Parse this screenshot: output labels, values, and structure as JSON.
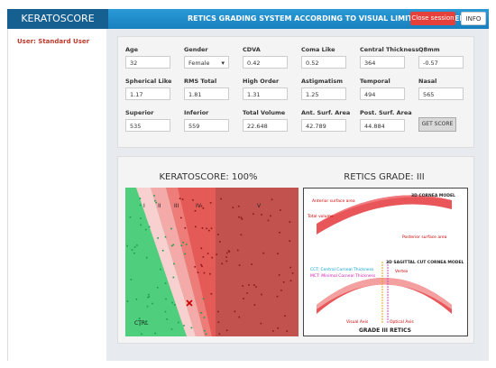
{
  "header": {
    "brand": "KERATOSCORE",
    "title": "RETICS GRADING SYSTEM ACCORDING TO VISUAL LIMITATION LEVEL",
    "close_button": "Close session",
    "info_button": "INFO"
  },
  "sidebar": {
    "user": "User: Standard User"
  },
  "form": {
    "fields": [
      {
        "label": "Age",
        "value": "32"
      },
      {
        "label": "Gender",
        "value": "Female"
      },
      {
        "label": "CDVA",
        "value": "0.42"
      },
      {
        "label": "Coma Like",
        "value": "0.52"
      },
      {
        "label": "Central Thickness",
        "value": "364"
      },
      {
        "label": "Q8mm",
        "value": "-0.57"
      },
      {
        "label": "Spherical Like",
        "value": "1.17"
      },
      {
        "label": "RMS Total",
        "value": "1.81"
      },
      {
        "label": "High Order",
        "value": "1.31"
      },
      {
        "label": "Astigmatism",
        "value": "1.25"
      },
      {
        "label": "Temporal",
        "value": "494"
      },
      {
        "label": "Nasal",
        "value": "565"
      },
      {
        "label": "Superior",
        "value": "535"
      },
      {
        "label": "Inferior",
        "value": "559"
      },
      {
        "label": "Total Volume",
        "value": "22.648"
      },
      {
        "label": "Ant. Surf. Area",
        "value": "42.789"
      },
      {
        "label": "Post. Surf. Area",
        "value": "44.884"
      }
    ],
    "button": "GET SCORE"
  },
  "results": {
    "score_title": "KERATOSCORE: 100%",
    "grade_title": "RETICS GRADE: III",
    "chart": {
      "zones": [
        "I",
        "II",
        "III",
        "IV",
        "V"
      ],
      "control": "CTRL"
    },
    "model": {
      "title_3d": "3D CORNEA MODEL",
      "anterior": "Anterior surface area",
      "volume": "Total volume",
      "posterior": "Posterior surface area",
      "title_cut": "3D SAGITTAL CUT CORNEA MODEL",
      "cct": "CCT: Central Corneal Thickness",
      "mct": "MCT: Minimal Corneal Thickness",
      "vertex": "Vertex",
      "visual_axis": "Visual Axis",
      "optical_axis": "Optical Axis",
      "grade": "GRADE III RETICS"
    }
  }
}
